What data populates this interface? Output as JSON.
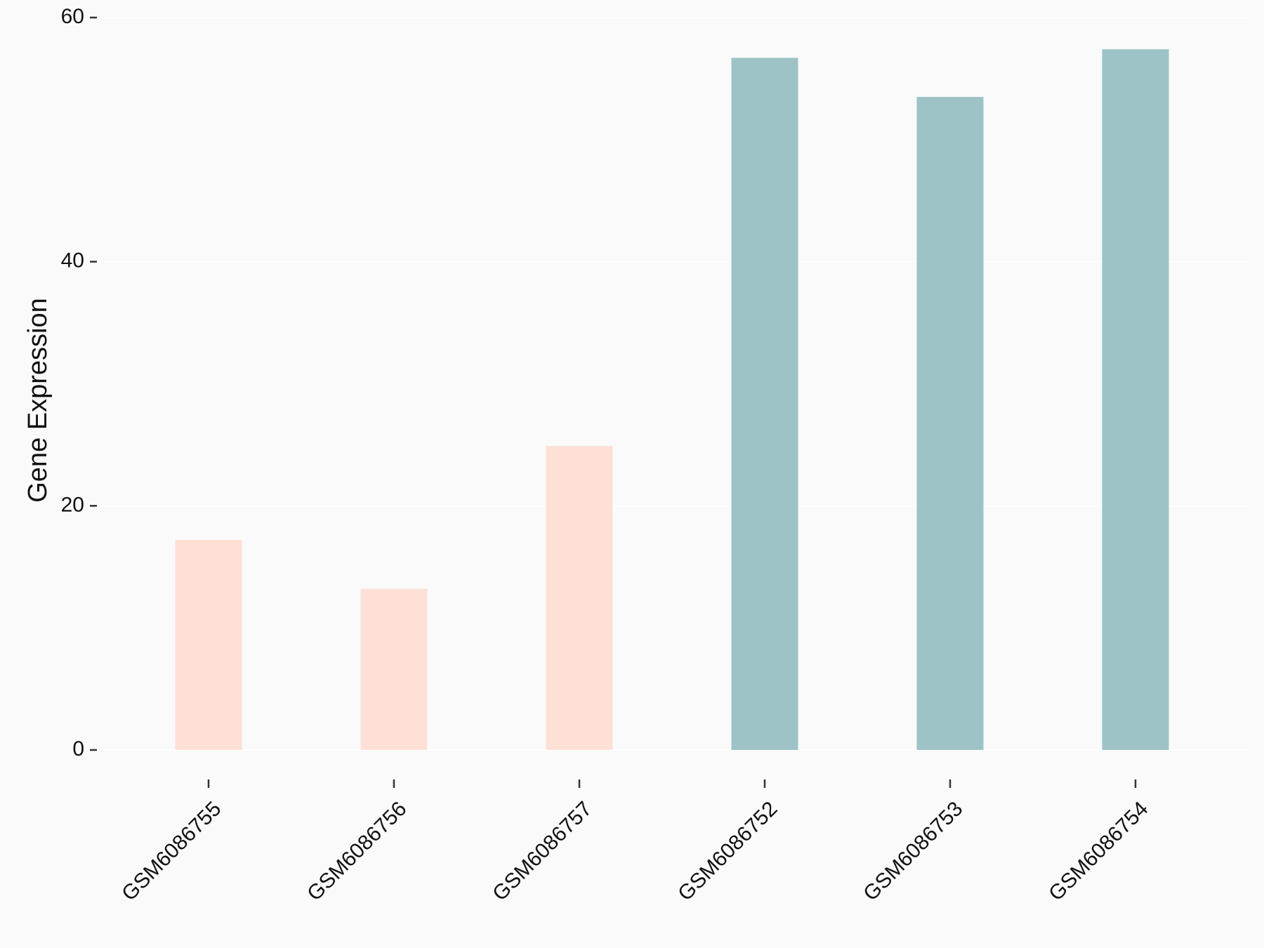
{
  "chart_data": {
    "type": "bar",
    "ylabel": "Gene Expression",
    "categories": [
      "GSM6086755",
      "GSM6086756",
      "GSM6086757",
      "GSM6086752",
      "GSM6086753",
      "GSM6086754"
    ],
    "values": [
      17.2,
      13.2,
      24.9,
      56.7,
      53.5,
      57.4
    ],
    "colors": [
      "#FFE0D6",
      "#FFE0D6",
      "#FFE0D6",
      "#9DC3C7",
      "#9DC3C7",
      "#9DC3C7"
    ],
    "ylim": [
      0,
      60
    ],
    "yticks": [
      0,
      20,
      40,
      60
    ],
    "grid": true
  }
}
